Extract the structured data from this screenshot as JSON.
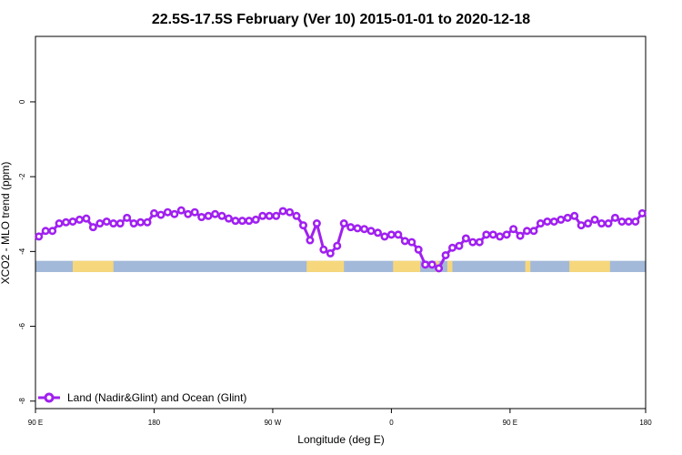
{
  "chart_data": {
    "type": "line",
    "title": "22.5S-17.5S February (Ver 10)   2015-01-01 to 2020-12-18",
    "xlabel": "Longitude (deg E)",
    "ylabel": "XCO2 - MLO trend (ppm)",
    "xlim": [
      90,
      450
    ],
    "ylim": [
      -8.2,
      1.75
    ],
    "x_ticks": [
      {
        "value": 90,
        "label": "90 E"
      },
      {
        "value": 160,
        "label": "180"
      },
      {
        "value": 230,
        "label": "90 W"
      },
      {
        "value": 300,
        "label": "0"
      },
      {
        "value": 370,
        "label": "90 E"
      },
      {
        "value": 450,
        "label": "180"
      }
    ],
    "y_ticks": [
      {
        "value": 0,
        "label": "0"
      },
      {
        "value": -2,
        "label": "-2"
      },
      {
        "value": -4,
        "label": "-4"
      },
      {
        "value": -6,
        "label": "-6"
      },
      {
        "value": -8,
        "label": "-8"
      }
    ],
    "series": [
      {
        "name": "Land (Nadir&Glint) and Ocean (Glint)",
        "color": "#a020f0",
        "marker": "open-circle",
        "x": [
          92,
          96,
          100,
          104,
          108,
          112,
          116,
          120,
          124,
          128,
          132,
          136,
          140,
          144,
          148,
          152,
          156,
          160,
          164,
          168,
          172,
          176,
          180,
          184,
          188,
          192,
          196,
          200,
          204,
          208,
          212,
          216,
          220,
          224,
          228,
          232,
          236,
          240,
          244,
          248,
          252,
          256,
          260,
          264,
          268,
          272,
          276,
          280,
          284,
          288,
          292,
          296,
          300,
          304,
          308,
          312,
          316,
          320,
          324,
          328,
          332,
          336,
          340,
          344,
          348,
          352,
          356,
          360,
          364,
          368,
          372,
          376,
          380,
          384,
          388,
          392,
          396,
          400,
          404,
          408,
          412,
          416,
          420,
          424,
          428,
          432,
          436,
          440,
          444,
          448
        ],
        "y": [
          -3.6,
          -3.45,
          -3.45,
          -3.25,
          -3.22,
          -3.2,
          -3.15,
          -3.12,
          -3.35,
          -3.25,
          -3.2,
          -3.25,
          -3.25,
          -3.1,
          -3.25,
          -3.22,
          -3.22,
          -2.98,
          -3.02,
          -2.95,
          -3.0,
          -2.9,
          -3.0,
          -2.95,
          -3.08,
          -3.05,
          -3.0,
          -3.05,
          -3.12,
          -3.18,
          -3.18,
          -3.18,
          -3.15,
          -3.05,
          -3.05,
          -3.05,
          -2.92,
          -2.95,
          -3.05,
          -3.3,
          -3.7,
          -3.25,
          -3.95,
          -4.05,
          -3.85,
          -3.25,
          -3.35,
          -3.38,
          -3.4,
          -3.45,
          -3.5,
          -3.6,
          -3.55,
          -3.55,
          -3.72,
          -3.75,
          -3.95,
          -4.35,
          -4.35,
          -4.45,
          -4.1,
          -3.9,
          -3.85,
          -3.65,
          -3.75,
          -3.75,
          -3.55,
          -3.55,
          -3.6,
          -3.55,
          -3.4,
          -3.58,
          -3.45,
          -3.45,
          -3.25,
          -3.2,
          -3.2,
          -3.15,
          -3.1,
          -3.05,
          -3.3,
          -3.25,
          -3.15,
          -3.25,
          -3.25,
          -3.1,
          -3.2,
          -3.2,
          -3.2,
          -2.98
        ]
      }
    ],
    "land_ocean_band": {
      "y_range": [
        -4.55,
        -4.25
      ],
      "ocean_color": "#a3b9d9",
      "land_color": "#f7d77c",
      "land_segments": [
        [
          112,
          136
        ],
        [
          250,
          272
        ],
        [
          301,
          317
        ],
        [
          326,
          328
        ],
        [
          333,
          336
        ],
        [
          379,
          382
        ],
        [
          405,
          429
        ]
      ]
    },
    "legend": {
      "position": "bottom-left",
      "entries": [
        "Land (Nadir&Glint) and Ocean (Glint)"
      ]
    },
    "grid": false
  }
}
